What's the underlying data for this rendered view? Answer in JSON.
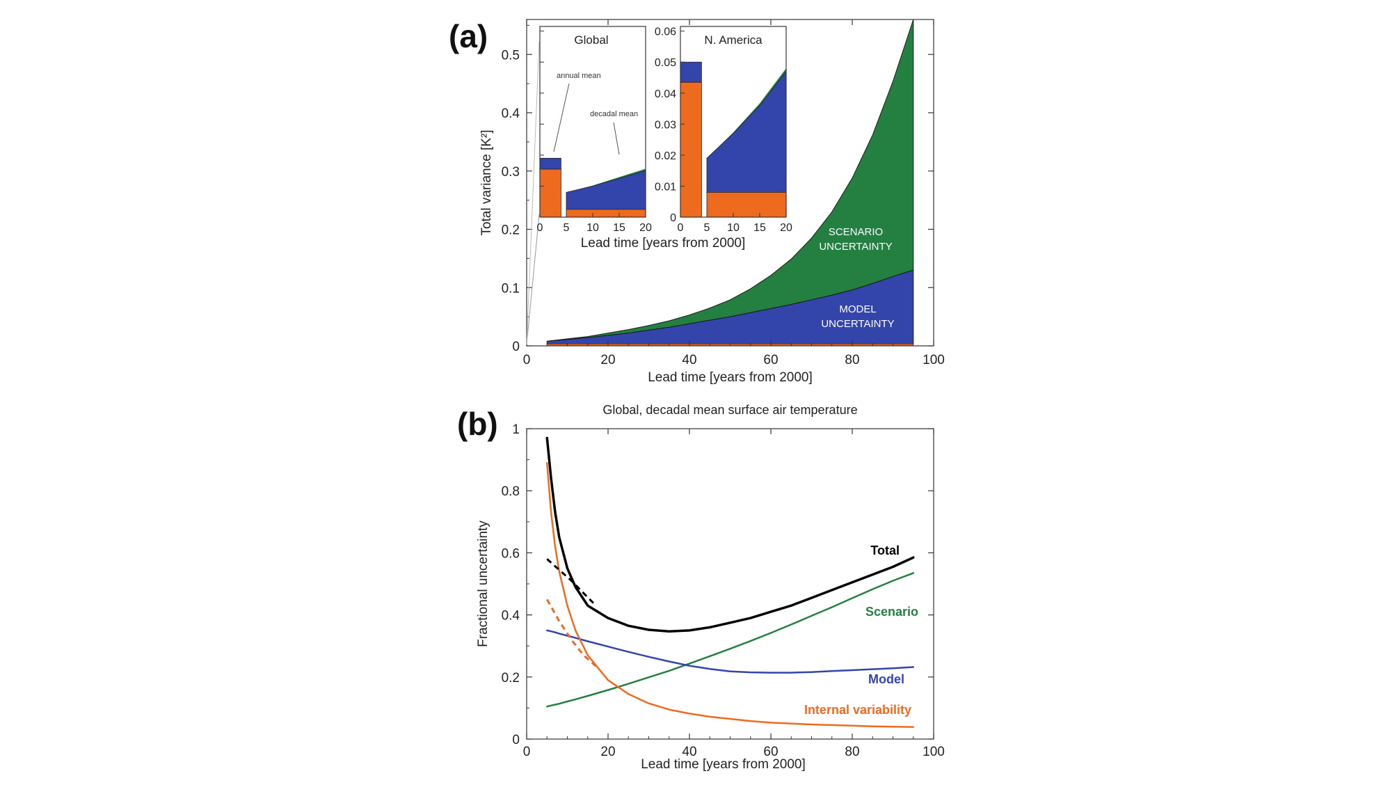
{
  "panel_a": {
    "label": "(a)"
  },
  "panel_b": {
    "label": "(b)"
  },
  "colors": {
    "internal": "#ee6a1f",
    "model": "#3344aa",
    "scenario": "#238040",
    "total": "#000000"
  },
  "chart_data": [
    {
      "type": "area",
      "xlabel": "Lead time  [years from 2000]",
      "ylabel": "Total variance  [K²]",
      "xlim": [
        0,
        100
      ],
      "ylim": [
        0,
        0.56
      ],
      "xticks": [
        "0",
        "20",
        "40",
        "60",
        "80",
        "100"
      ],
      "yticks": [
        "0",
        "0.1",
        "0.2",
        "0.3",
        "0.4",
        "0.5"
      ],
      "x": [
        5,
        10,
        15,
        20,
        25,
        30,
        35,
        40,
        45,
        50,
        55,
        60,
        65,
        70,
        75,
        80,
        85,
        90,
        95
      ],
      "series": [
        {
          "name": "",
          "values": [
            0.003,
            0.003,
            0.003,
            0.003,
            0.003,
            0.003,
            0.003,
            0.003,
            0.003,
            0.003,
            0.003,
            0.003,
            0.003,
            0.003,
            0.003,
            0.003,
            0.003,
            0.003,
            0.003
          ]
        },
        {
          "name": "MODEL UNCERTAINTY",
          "values": [
            0.005,
            0.008,
            0.011,
            0.015,
            0.019,
            0.024,
            0.029,
            0.035,
            0.041,
            0.047,
            0.054,
            0.061,
            0.068,
            0.076,
            0.084,
            0.093,
            0.104,
            0.116,
            0.127
          ]
        },
        {
          "name": "SCENARIO UNCERTAINTY",
          "values": [
            0.0,
            0.001,
            0.002,
            0.004,
            0.006,
            0.008,
            0.011,
            0.015,
            0.021,
            0.029,
            0.041,
            0.057,
            0.078,
            0.106,
            0.143,
            0.192,
            0.255,
            0.335,
            0.43
          ]
        }
      ],
      "stack_order": "internal, model, scenario"
    },
    {
      "type": "bar",
      "title": "Global",
      "xlabel": "Lead time  [years from 2000]",
      "xticks": [
        "0",
        "5",
        "10",
        "15",
        "20"
      ],
      "xlim": [
        0,
        20
      ],
      "ylim": [
        0,
        0.0615
      ],
      "annotations": [
        "annual mean",
        "decadal mean"
      ],
      "annual_mean_bar": {
        "x0": 0,
        "x1": 4,
        "internal": 0.0155,
        "model": 0.0035,
        "scenario": 0.0
      },
      "decadal_mean_area": {
        "x": [
          5,
          10,
          15,
          20
        ],
        "internal": [
          0.0025,
          0.0025,
          0.0025,
          0.0025
        ],
        "model": [
          0.0055,
          0.0075,
          0.01,
          0.0125
        ],
        "scenario": [
          0.0,
          0.0002,
          0.0004,
          0.0006
        ]
      }
    },
    {
      "type": "bar",
      "title": "N. America",
      "xlabel": "Lead time  [years from 2000]",
      "xticks": [
        "0",
        "5",
        "10",
        "15",
        "20"
      ],
      "yticks": [
        "0",
        "0.01",
        "0.02",
        "0.03",
        "0.04",
        "0.05",
        "0.06"
      ],
      "xlim": [
        0,
        20
      ],
      "ylim": [
        0,
        0.0615
      ],
      "annual_mean_bar": {
        "x0": 0,
        "x1": 4,
        "internal": 0.0435,
        "model": 0.0065,
        "scenario": 0.0
      },
      "decadal_mean_area": {
        "x": [
          5,
          10,
          15,
          20
        ],
        "internal": [
          0.008,
          0.008,
          0.008,
          0.008
        ],
        "model": [
          0.011,
          0.019,
          0.028,
          0.039
        ],
        "scenario": [
          0.0,
          0.0003,
          0.0007,
          0.001
        ]
      }
    },
    {
      "type": "line",
      "title": "Global, decadal mean surface air temperature",
      "xlabel": "Lead time  [years from 2000]",
      "ylabel": "Fractional uncertainty",
      "xlim": [
        0,
        100
      ],
      "ylim": [
        0,
        1
      ],
      "xticks": [
        "0",
        "20",
        "40",
        "60",
        "80",
        "100"
      ],
      "yticks": [
        "0",
        "0.2",
        "0.4",
        "0.6",
        "0.8",
        "1"
      ],
      "x": [
        5,
        6,
        7,
        8,
        10,
        12,
        15,
        20,
        25,
        30,
        35,
        40,
        45,
        50,
        55,
        60,
        65,
        70,
        75,
        80,
        85,
        90,
        95
      ],
      "series": [
        {
          "name": "Total",
          "key": "total",
          "values": [
            0.97,
            0.84,
            0.73,
            0.65,
            0.55,
            0.49,
            0.43,
            0.39,
            0.365,
            0.352,
            0.347,
            0.35,
            0.36,
            0.375,
            0.39,
            0.41,
            0.43,
            0.455,
            0.48,
            0.505,
            0.53,
            0.555,
            0.585
          ]
        },
        {
          "name": "Scenario",
          "key": "scenario",
          "values": [
            0.105,
            0.108,
            0.111,
            0.114,
            0.121,
            0.128,
            0.139,
            0.158,
            0.178,
            0.199,
            0.22,
            0.243,
            0.267,
            0.291,
            0.316,
            0.342,
            0.369,
            0.397,
            0.425,
            0.454,
            0.483,
            0.51,
            0.535
          ]
        },
        {
          "name": "Model",
          "key": "model",
          "values": [
            0.35,
            0.347,
            0.344,
            0.34,
            0.333,
            0.326,
            0.315,
            0.298,
            0.281,
            0.265,
            0.25,
            0.236,
            0.226,
            0.218,
            0.215,
            0.214,
            0.214,
            0.216,
            0.219,
            0.222,
            0.225,
            0.228,
            0.232
          ]
        },
        {
          "name": "Internal variability",
          "key": "internal",
          "values": [
            0.89,
            0.73,
            0.62,
            0.54,
            0.43,
            0.35,
            0.27,
            0.19,
            0.145,
            0.115,
            0.095,
            0.082,
            0.072,
            0.065,
            0.058,
            0.053,
            0.05,
            0.047,
            0.045,
            0.043,
            0.041,
            0.04,
            0.039
          ]
        }
      ],
      "dashed_series": [
        {
          "key": "total",
          "x": [
            5,
            8,
            11,
            14,
            17
          ],
          "values": [
            0.58,
            0.545,
            0.51,
            0.47,
            0.43
          ]
        },
        {
          "key": "internal",
          "x": [
            5,
            8,
            11,
            14,
            17
          ],
          "values": [
            0.45,
            0.38,
            0.32,
            0.27,
            0.235
          ]
        }
      ]
    }
  ]
}
